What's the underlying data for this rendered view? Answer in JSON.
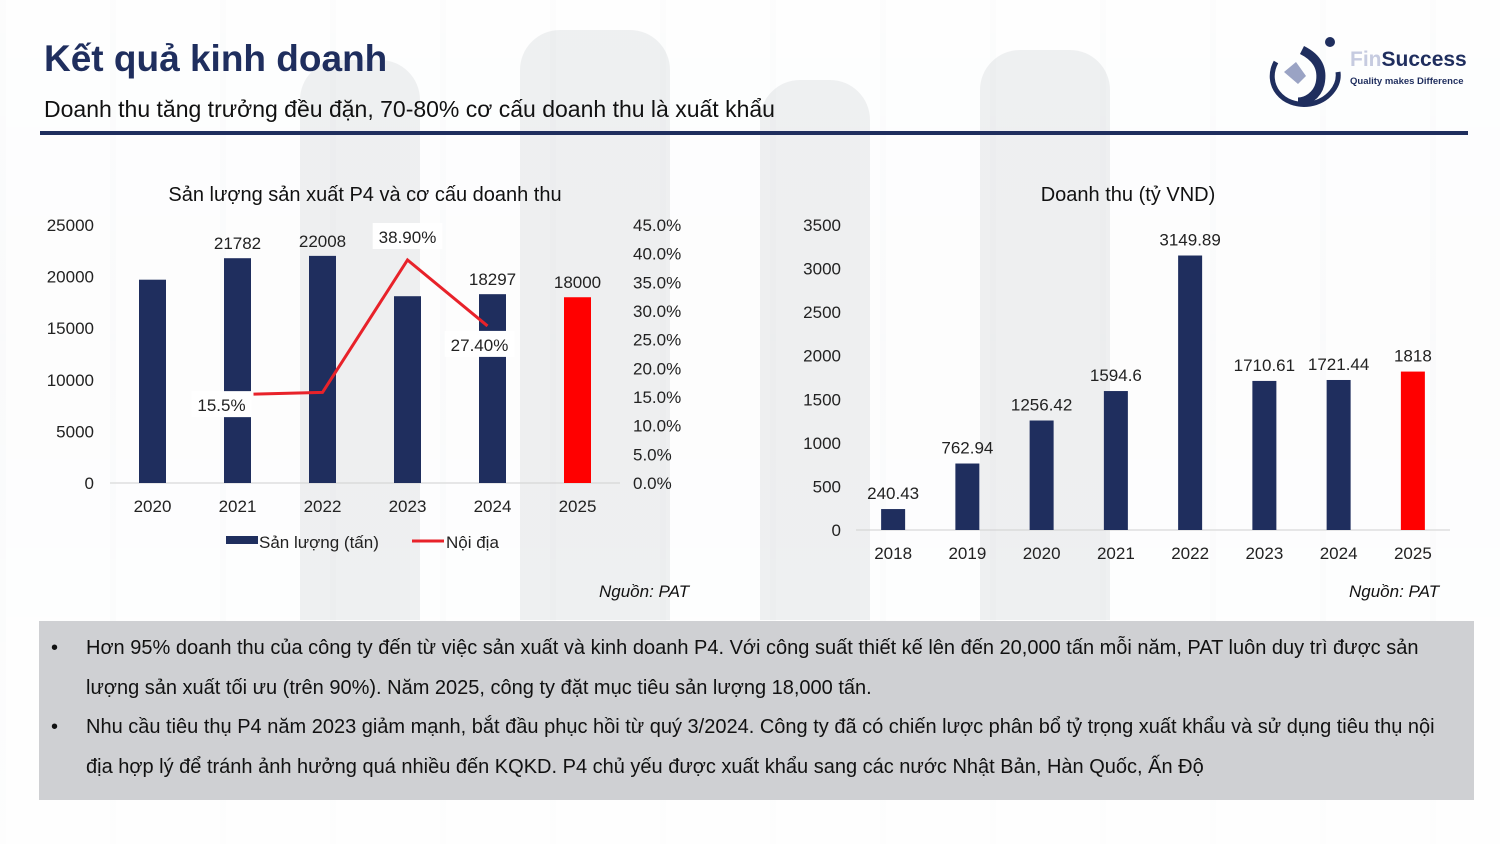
{
  "header": {
    "title": "Kết quả kinh doanh",
    "subtitle": "Doanh thu tăng trưởng đều đặn, 70-80% cơ cấu doanh thu là xuất khẩu"
  },
  "logo": {
    "brand_prefix": "Fin",
    "brand_suffix": "Success",
    "tagline": "Quality makes Difference"
  },
  "colors": {
    "navy": "#1f2e5e",
    "red": "#ff0000",
    "line_red": "#e8222a"
  },
  "chart_data": [
    {
      "type": "bar",
      "title": "Sản lượng sản xuất P4 và cơ cấu doanh thu",
      "categories": [
        "2020",
        "2021",
        "2022",
        "2023",
        "2024",
        "2025"
      ],
      "series": [
        {
          "name": "Sản lượng (tấn)",
          "values": [
            19700,
            21782,
            22008,
            18100,
            18297,
            18000
          ],
          "labels": [
            "",
            "21782",
            "22008",
            "",
            "18297",
            "18000"
          ],
          "highlight_last": true
        }
      ],
      "line_series": [
        {
          "name": "Nội địa",
          "values": [
            null,
            15.5,
            15.8,
            38.9,
            27.4,
            null
          ],
          "labels": [
            "",
            "15.5%",
            "",
            "38.90%",
            "27.40%",
            ""
          ]
        }
      ],
      "y_ticks": [
        "0",
        "5000",
        "10000",
        "15000",
        "20000",
        "25000"
      ],
      "ylim": [
        0,
        25000
      ],
      "y2_ticks": [
        "0.0%",
        "5.0%",
        "10.0%",
        "15.0%",
        "20.0%",
        "25.0%",
        "30.0%",
        "35.0%",
        "40.0%",
        "45.0%"
      ],
      "y2lim": [
        0,
        45
      ],
      "legend": "bottom",
      "source": "Nguồn: PAT"
    },
    {
      "type": "bar",
      "title": "Doanh thu (tỷ VND)",
      "categories": [
        "2018",
        "2019",
        "2020",
        "2021",
        "2022",
        "2023",
        "2024",
        "2025"
      ],
      "series": [
        {
          "name": "",
          "values": [
            240.43,
            762.94,
            1256.42,
            1594.6,
            3149.89,
            1710.61,
            1721.44,
            1818
          ],
          "labels": [
            "240.43",
            "762.94",
            "1256.42",
            "1594.6",
            "3149.89",
            "1710.61",
            "1721.44",
            "1818"
          ],
          "highlight_last": true
        }
      ],
      "y_ticks": [
        "0",
        "500",
        "1000",
        "1500",
        "2000",
        "2500",
        "3000",
        "3500"
      ],
      "ylim": [
        0,
        3500
      ],
      "source": "Nguồn: PAT"
    }
  ],
  "notes": [
    "Hơn 95% doanh thu của công ty đến từ việc sản xuất và kinh doanh P4. Với công suất thiết kế lên đến 20,000 tấn mỗi năm, PAT luôn duy trì được sản lượng sản xuất tối ưu (trên 90%). Năm 2025, công ty đặt mục tiêu sản lượng 18,000 tấn.",
    "Nhu cầu tiêu thụ P4 năm 2023 giảm mạnh, bắt đầu phục hồi từ quý 3/2024. Công ty đã có chiến lược phân bổ tỷ trọng xuất khẩu và sử dụng tiêu thụ nội địa hợp lý để tránh ảnh hưởng quá nhiều đến KQKD. P4 chủ yếu được xuất khẩu sang các nước Nhật Bản, Hàn Quốc, Ấn Độ"
  ]
}
